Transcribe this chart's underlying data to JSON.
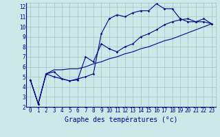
{
  "xlabel": "Graphe des températures (°c)",
  "xlim": [
    -0.5,
    23.5
  ],
  "ylim": [
    2,
    12.4
  ],
  "xticks": [
    0,
    1,
    2,
    3,
    4,
    5,
    6,
    7,
    8,
    9,
    10,
    11,
    12,
    13,
    14,
    15,
    16,
    17,
    18,
    19,
    20,
    21,
    22,
    23
  ],
  "yticks": [
    2,
    3,
    4,
    5,
    6,
    7,
    8,
    9,
    10,
    11,
    12
  ],
  "bg_color": "#cce8e8",
  "line_color": "#00008b",
  "line1_x": [
    0,
    1,
    2,
    3,
    4,
    5,
    6,
    7,
    8,
    9,
    10,
    11,
    12,
    13,
    14,
    15,
    16,
    17,
    18,
    19,
    20,
    21,
    22,
    23
  ],
  "line1_y": [
    4.7,
    2.3,
    5.3,
    5.0,
    4.8,
    4.6,
    4.8,
    5.0,
    5.3,
    9.3,
    10.8,
    11.2,
    11.0,
    11.4,
    11.6,
    11.6,
    12.3,
    11.8,
    11.8,
    10.8,
    10.5,
    10.5,
    10.5,
    10.3
  ],
  "line2_x": [
    0,
    1,
    2,
    3,
    4,
    5,
    6,
    7,
    8,
    9,
    10,
    11,
    12,
    13,
    14,
    15,
    16,
    17,
    18,
    19,
    20,
    21,
    22,
    23
  ],
  "line2_y": [
    4.7,
    2.3,
    5.3,
    5.5,
    4.8,
    4.6,
    4.7,
    7.0,
    6.5,
    8.3,
    7.8,
    7.5,
    8.0,
    8.3,
    9.0,
    9.3,
    9.7,
    10.2,
    10.5,
    10.7,
    10.8,
    10.5,
    10.8,
    10.3
  ],
  "line3_x": [
    0,
    1,
    2,
    3,
    4,
    5,
    6,
    7,
    8,
    9,
    10,
    11,
    12,
    13,
    14,
    15,
    16,
    17,
    18,
    19,
    20,
    21,
    22,
    23
  ],
  "line3_y": [
    4.7,
    2.3,
    5.3,
    5.7,
    5.7,
    5.8,
    5.8,
    6.0,
    6.3,
    6.5,
    6.8,
    7.0,
    7.3,
    7.5,
    7.8,
    8.0,
    8.3,
    8.6,
    8.8,
    9.1,
    9.4,
    9.7,
    10.0,
    10.3
  ],
  "tick_fontsize": 5.5,
  "label_fontsize": 7,
  "grid_color": "#a0c4c4",
  "marker": "D",
  "markersize": 1.8,
  "linewidth": 0.8,
  "figsize": [
    3.2,
    2.0
  ],
  "dpi": 100
}
